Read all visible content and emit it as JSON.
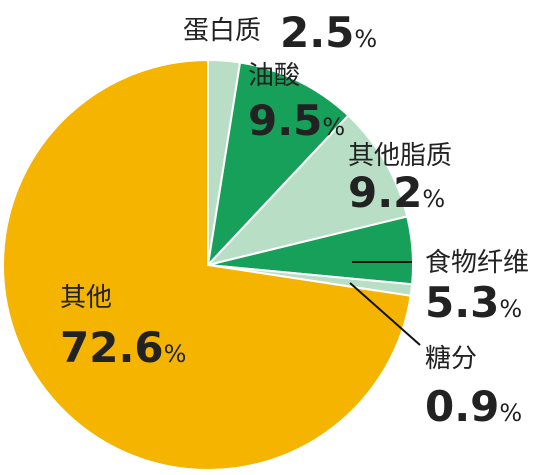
{
  "chart_data": {
    "type": "pie",
    "categories": [
      "蛋白质",
      "油酸",
      "其他脂质",
      "食物纤维",
      "糖分",
      "其他"
    ],
    "values": [
      2.5,
      9.5,
      9.2,
      5.3,
      0.9,
      72.6
    ],
    "value_labels": [
      "2.5%",
      "9.5%",
      "9.2%",
      "5.3%",
      "0.9%",
      "72.6%"
    ],
    "colors": [
      "#b8dec5",
      "#17a05a",
      "#b8dec5",
      "#17a05a",
      "#b8dec5",
      "#f4b400"
    ]
  }
}
